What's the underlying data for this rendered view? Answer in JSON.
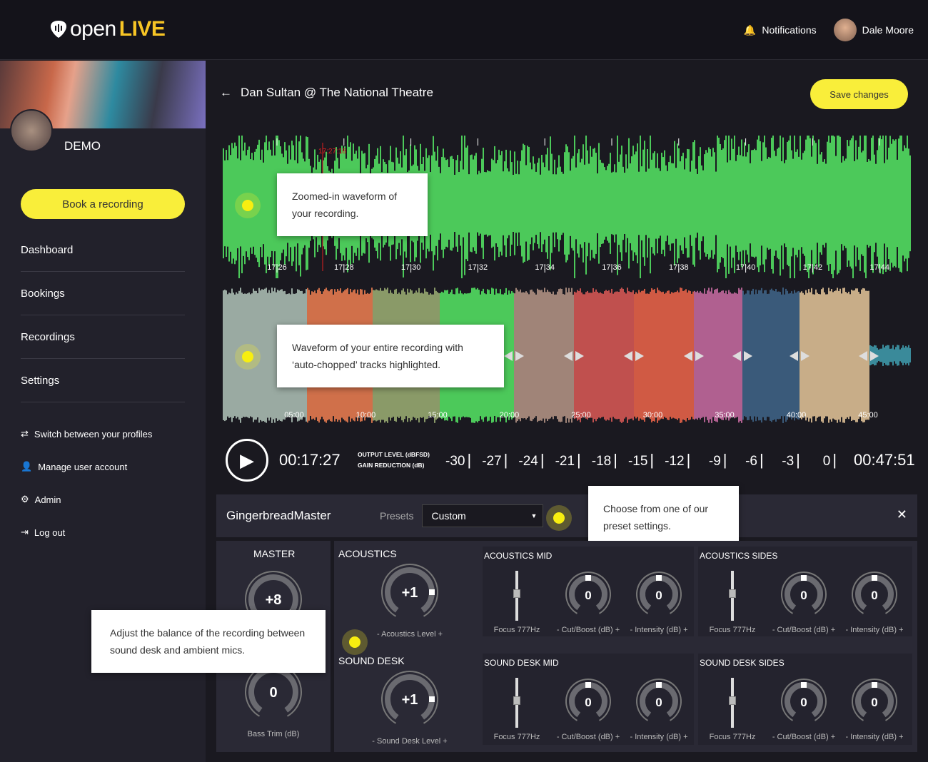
{
  "header": {
    "brand_open": "open",
    "brand_live": "LIVE",
    "notifications": "Notifications",
    "user": "Dale Moore"
  },
  "sidebar": {
    "profile_name": "DEMO",
    "book_button": "Book a recording",
    "nav": [
      "Dashboard",
      "Bookings",
      "Recordings",
      "Settings"
    ],
    "links": [
      {
        "icon": "switch-icon",
        "label": "Switch between your profiles"
      },
      {
        "icon": "user-icon",
        "label": "Manage user account"
      },
      {
        "icon": "gear-icon",
        "label": "Admin"
      },
      {
        "icon": "logout-icon",
        "label": "Log out"
      }
    ]
  },
  "page": {
    "title": "Dan Sultan @ The National Theatre",
    "save_button": "Save changes"
  },
  "zoom_waveform": {
    "playhead": "17:27:18",
    "ticks": [
      "17:26",
      "17:28",
      "17:30",
      "17:32",
      "17:34",
      "17:36",
      "17:38",
      "17:40",
      "17:42",
      "17:44"
    ],
    "color": "#4cc95a"
  },
  "full_waveform": {
    "ticks": [
      "05:00",
      "10:00",
      "15:00",
      "20:00",
      "25:00",
      "30:00",
      "35:00",
      "40:00",
      "45:00"
    ],
    "track_colors": [
      "#9aaaa2",
      "#d0704a",
      "#8a9a68",
      "#4cc95a",
      "#a08478",
      "#c0504e",
      "#d05a44",
      "#b06090",
      "#3a5a7a",
      "#c8ad88",
      "#3a8a9a"
    ]
  },
  "transport": {
    "current": "00:17:27",
    "total": "00:47:51",
    "meter_label_1": "OUTPUT LEVEL (dBFSD)",
    "meter_label_2": "GAIN REDUCTION (dB)",
    "scale": [
      "-30",
      "-27",
      "-24",
      "-21",
      "-18",
      "-15",
      "-12",
      "-9",
      "-6",
      "-3",
      "0"
    ]
  },
  "mixer": {
    "preset_name": "GingerbreadMaster",
    "presets_label": "Presets",
    "preset_value": "Custom",
    "master": {
      "title": "MASTER",
      "gain": "+8",
      "bass": "0",
      "bass_label": "Bass Trim (dB)"
    },
    "acoustics": {
      "title": "ACOUSTICS",
      "value": "+1",
      "label": "- Acoustics Level +"
    },
    "sound_desk": {
      "title": "SOUND DESK",
      "value": "+1",
      "label": "- Sound Desk Level +"
    },
    "bands": [
      {
        "title": "ACOUSTICS MID",
        "focus": "Focus 777Hz",
        "cut": "0",
        "cut_label": "- Cut/Boost (dB) +",
        "int": "0",
        "int_label": "- Intensity (dB) +"
      },
      {
        "title": "ACOUSTICS SIDES",
        "focus": "Focus 777Hz",
        "cut": "0",
        "cut_label": "- Cut/Boost (dB) +",
        "int": "0",
        "int_label": "- Intensity (dB) +"
      },
      {
        "title": "SOUND DESK MID",
        "focus": "Focus 777Hz",
        "cut": "0",
        "cut_label": "- Cut/Boost (dB) +",
        "int": "0",
        "int_label": "- Intensity (dB) +"
      },
      {
        "title": "SOUND DESK SIDES",
        "focus": "Focus 777Hz",
        "cut": "0",
        "cut_label": "- Cut/Boost (dB) +",
        "int": "0",
        "int_label": "- Intensity (dB) +"
      }
    ]
  },
  "tooltips": {
    "zoom": "Zoomed-in waveform of your recording.",
    "full": "Waveform of your entire recording with ‘auto-chopped’ tracks highlighted.",
    "preset": "Choose from one of our preset settings.",
    "balance": "Adjust the balance of the recording between sound desk and ambient mics."
  }
}
